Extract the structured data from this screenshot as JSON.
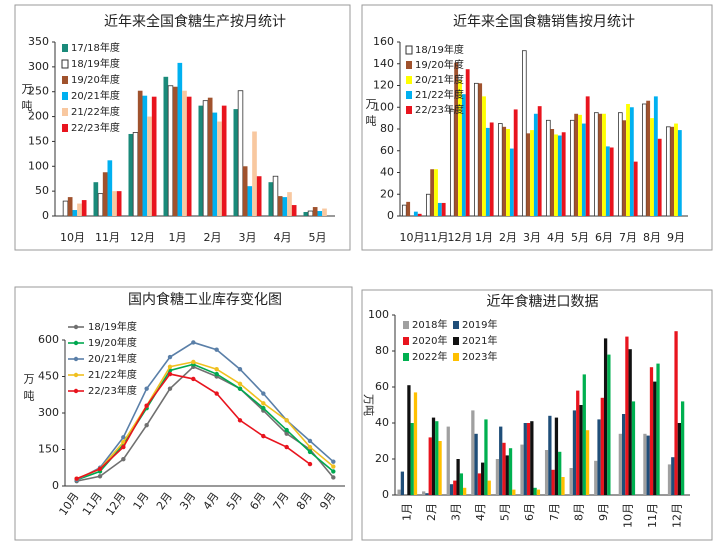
{
  "chart_data": [
    {
      "type": "bar",
      "title": "近年来全国食糖生产按月统计",
      "ylabel": "万吨",
      "legend": "upper left",
      "categories": [
        "10月",
        "11月",
        "12月",
        "1月",
        "2月",
        "3月",
        "4月",
        "5月"
      ],
      "ylim": [
        0,
        350
      ],
      "yticks": [
        0,
        50,
        100,
        150,
        200,
        250,
        300,
        350
      ],
      "series": [
        {
          "name": "17/18年度",
          "color": "#1a8a7a",
          "values": [
            null,
            68,
            165,
            280,
            222,
            215,
            68,
            8
          ]
        },
        {
          "name": "18/19年度",
          "color": "#ffffff",
          "values": [
            30,
            45,
            168,
            262,
            232,
            252,
            80,
            10
          ]
        },
        {
          "name": "19/20年度",
          "color": "#a0522d",
          "values": [
            38,
            88,
            252,
            260,
            238,
            100,
            40,
            18
          ]
        },
        {
          "name": "20/21年度",
          "color": "#00b0f0",
          "values": [
            12,
            112,
            242,
            308,
            208,
            60,
            38,
            10
          ]
        },
        {
          "name": "21/22年度",
          "color": "#f8c8a0",
          "values": [
            25,
            50,
            200,
            252,
            190,
            170,
            48,
            15
          ]
        },
        {
          "name": "22/23年度",
          "color": "#e8141e",
          "values": [
            32,
            50,
            240,
            240,
            222,
            80,
            22,
            null
          ]
        }
      ]
    },
    {
      "type": "bar",
      "title": "近年来全国食糖销售按月统计",
      "ylabel": "万吨",
      "legend": "upper left",
      "categories": [
        "10月",
        "11月",
        "12月",
        "1月",
        "2月",
        "3月",
        "4月",
        "5月",
        "6月",
        "7月",
        "8月",
        "9月"
      ],
      "ylim": [
        0,
        160
      ],
      "yticks": [
        0,
        20,
        40,
        60,
        80,
        100,
        120,
        140,
        160
      ],
      "series": [
        {
          "name": "18/19年度",
          "color": "#ffffff",
          "values": [
            10,
            20,
            98,
            122,
            85,
            152,
            88,
            88,
            95,
            95,
            103,
            82
          ]
        },
        {
          "name": "19/20年度",
          "color": "#a0522d",
          "values": [
            13,
            43,
            141,
            122,
            82,
            76,
            80,
            94,
            94,
            88,
            106,
            82
          ]
        },
        {
          "name": "20/21年度",
          "color": "#ffff00",
          "values": [
            null,
            43,
            125,
            110,
            80,
            79,
            75,
            93,
            94,
            103,
            90,
            85
          ]
        },
        {
          "name": "21/22年度",
          "color": "#00b0f0",
          "values": [
            4,
            12,
            112,
            81,
            62,
            94,
            74,
            85,
            64,
            100,
            110,
            79
          ]
        },
        {
          "name": "22/23年度",
          "color": "#e8141e",
          "values": [
            2,
            12,
            135,
            86,
            98,
            101,
            77,
            110,
            63,
            50,
            71,
            null
          ]
        }
      ]
    },
    {
      "type": "line",
      "title": "国内食糖工业库存变化图",
      "ylabel": "万吨",
      "legend": "upper left",
      "categories": [
        "10月",
        "11月",
        "12月",
        "1月",
        "2月",
        "3月",
        "4月",
        "5月",
        "6月",
        "7月",
        "8月",
        "9月"
      ],
      "ylim": [
        0,
        600
      ],
      "yticks": [
        0,
        150,
        300,
        450,
        600
      ],
      "series": [
        {
          "name": "18/19年度",
          "color": "#707070",
          "values": [
            20,
            40,
            110,
            250,
            400,
            490,
            450,
            400,
            310,
            215,
            150,
            35
          ]
        },
        {
          "name": "19/20年度",
          "color": "#00a850",
          "values": [
            25,
            60,
            170,
            320,
            475,
            500,
            460,
            400,
            320,
            230,
            140,
            60
          ]
        },
        {
          "name": "20/21年度",
          "color": "#5a7fa8",
          "values": [
            25,
            75,
            200,
            400,
            530,
            590,
            560,
            480,
            380,
            270,
            185,
            100
          ]
        },
        {
          "name": "21/22年度",
          "color": "#f0c020",
          "values": [
            30,
            70,
            180,
            330,
            490,
            510,
            480,
            420,
            340,
            270,
            160,
            80
          ]
        },
        {
          "name": "22/23年度",
          "color": "#e8141e",
          "values": [
            30,
            70,
            160,
            330,
            460,
            440,
            380,
            270,
            205,
            160,
            90,
            null
          ]
        }
      ]
    },
    {
      "type": "bar",
      "title": "近年食糖进口数据",
      "ylabel": "万吨",
      "legend": "upper left",
      "categories": [
        "1月",
        "2月",
        "3月",
        "4月",
        "5月",
        "6月",
        "7月",
        "8月",
        "9月",
        "10月",
        "11月",
        "12月"
      ],
      "ylim": [
        0,
        100
      ],
      "yticks": [
        0,
        20,
        40,
        60,
        80,
        100
      ],
      "series": [
        {
          "name": "2018年",
          "color": "#a0a0a0",
          "values": [
            3,
            2,
            38,
            47,
            20,
            28,
            25,
            15,
            19,
            34,
            34,
            17
          ]
        },
        {
          "name": "2019年",
          "color": "#1f4e79",
          "values": [
            13,
            1,
            6,
            34,
            38,
            40,
            44,
            47,
            42,
            45,
            33,
            21
          ]
        },
        {
          "name": "2020年",
          "color": "#e8141e",
          "values": [
            null,
            32,
            8,
            12,
            29,
            40,
            14,
            58,
            54,
            88,
            71,
            91
          ]
        },
        {
          "name": "2021年",
          "color": "#111111",
          "values": [
            61,
            43,
            20,
            18,
            22,
            41,
            43,
            50,
            87,
            81,
            63,
            40
          ]
        },
        {
          "name": "2022年",
          "color": "#00b050",
          "values": [
            40,
            41,
            12,
            42,
            26,
            4,
            24,
            67,
            78,
            52,
            73,
            52
          ]
        },
        {
          "name": "2023年",
          "color": "#ffc000",
          "values": [
            57,
            30,
            4,
            8,
            3,
            3,
            10,
            36,
            null,
            null,
            null,
            null
          ]
        }
      ]
    }
  ]
}
